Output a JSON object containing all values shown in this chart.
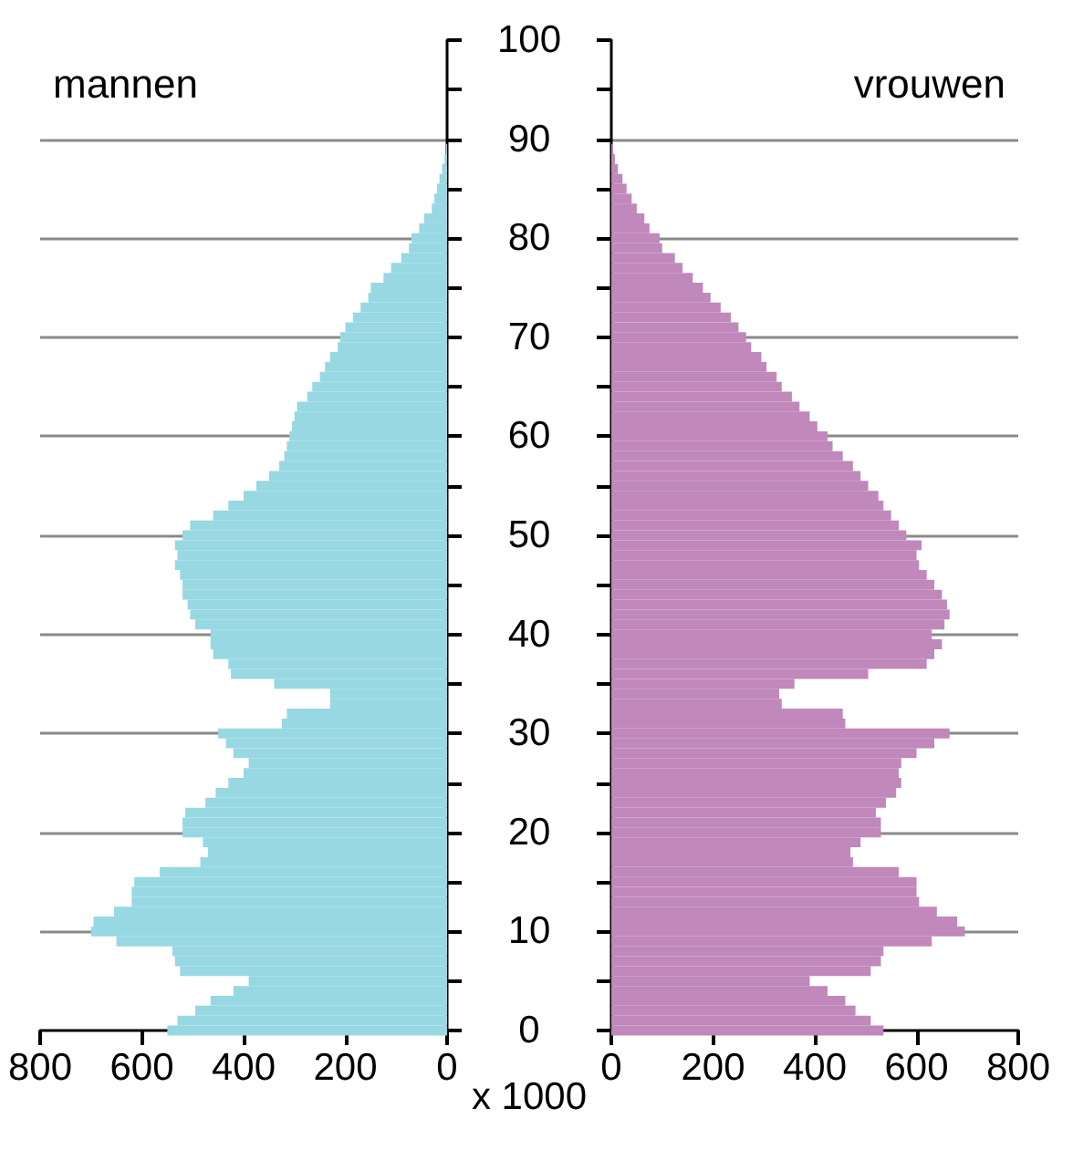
{
  "chart_data": [
    {
      "type": "bar",
      "orientation": "horizontal",
      "title": "mannen",
      "color": "#97d8e3",
      "grid": "y",
      "tick_labels": "x",
      "x": [
        0,
        1,
        2,
        3,
        4,
        5,
        6,
        7,
        8,
        9,
        10,
        11,
        12,
        13,
        14,
        15,
        16,
        17,
        18,
        19,
        20,
        21,
        22,
        23,
        24,
        25,
        26,
        27,
        28,
        29,
        30,
        31,
        32,
        33,
        34,
        35,
        36,
        37,
        38,
        39,
        40,
        41,
        42,
        43,
        44,
        45,
        46,
        47,
        48,
        49,
        50,
        51,
        52,
        53,
        54,
        55,
        56,
        57,
        58,
        59,
        60,
        61,
        62,
        63,
        64,
        65,
        66,
        67,
        68,
        69,
        70,
        71,
        72,
        73,
        74,
        75,
        76,
        77,
        78,
        79,
        80,
        81,
        82,
        83,
        84,
        85,
        86,
        87,
        88,
        89
      ],
      "values": [
        550,
        530,
        495,
        465,
        420,
        390,
        525,
        535,
        540,
        650,
        700,
        695,
        655,
        620,
        620,
        615,
        565,
        485,
        470,
        480,
        520,
        520,
        515,
        475,
        455,
        430,
        400,
        390,
        420,
        435,
        450,
        325,
        315,
        230,
        230,
        340,
        425,
        430,
        460,
        465,
        465,
        495,
        505,
        510,
        520,
        520,
        525,
        535,
        530,
        535,
        520,
        505,
        460,
        430,
        400,
        375,
        350,
        330,
        320,
        315,
        310,
        305,
        300,
        295,
        275,
        265,
        250,
        240,
        230,
        215,
        210,
        200,
        185,
        170,
        155,
        150,
        125,
        110,
        90,
        75,
        70,
        55,
        45,
        30,
        25,
        20,
        15,
        10,
        5,
        2
      ],
      "xlim": [
        800,
        0
      ],
      "xticks": [
        800,
        600,
        400,
        200,
        0
      ],
      "ylim": [
        0,
        100
      ],
      "yticks": [
        0,
        {
          "value": 5,
          "label": null
        },
        10,
        {
          "value": 15,
          "label": null
        },
        20,
        {
          "value": 25,
          "label": null
        },
        30,
        {
          "value": 35,
          "label": null
        },
        40,
        {
          "value": 45,
          "label": null
        },
        50,
        {
          "value": 55,
          "label": null
        },
        60,
        {
          "value": 65,
          "label": null
        },
        70,
        {
          "value": 75,
          "label": null
        },
        80,
        {
          "value": 85,
          "label": null
        },
        90,
        {
          "value": 95,
          "label": null
        },
        100
      ]
    },
    {
      "type": "bar",
      "orientation": "horizontal",
      "title": "vrouwen",
      "color": "#c088bb",
      "grid": "y",
      "annotations": [
        "x 1000"
      ],
      "x": [
        0,
        1,
        2,
        3,
        4,
        5,
        6,
        7,
        8,
        9,
        10,
        11,
        12,
        13,
        14,
        15,
        16,
        17,
        18,
        19,
        20,
        21,
        22,
        23,
        24,
        25,
        26,
        27,
        28,
        29,
        30,
        31,
        32,
        33,
        34,
        35,
        36,
        37,
        38,
        39,
        40,
        41,
        42,
        43,
        44,
        45,
        46,
        47,
        48,
        49,
        50,
        51,
        52,
        53,
        54,
        55,
        56,
        57,
        58,
        59,
        60,
        61,
        62,
        63,
        64,
        65,
        66,
        67,
        68,
        69,
        70,
        71,
        72,
        73,
        74,
        75,
        76,
        77,
        78,
        79,
        80,
        81,
        82,
        83,
        84,
        85,
        86,
        87,
        88,
        89
      ],
      "values": [
        535,
        510,
        480,
        460,
        425,
        390,
        510,
        530,
        535,
        630,
        695,
        680,
        640,
        605,
        600,
        600,
        565,
        475,
        470,
        490,
        530,
        530,
        520,
        540,
        560,
        570,
        565,
        570,
        600,
        635,
        665,
        460,
        455,
        335,
        330,
        360,
        505,
        620,
        635,
        650,
        630,
        655,
        665,
        660,
        650,
        635,
        620,
        605,
        600,
        610,
        580,
        565,
        550,
        535,
        525,
        505,
        490,
        475,
        455,
        435,
        425,
        405,
        390,
        370,
        355,
        335,
        325,
        305,
        295,
        275,
        265,
        250,
        235,
        215,
        195,
        180,
        160,
        140,
        125,
        100,
        95,
        75,
        65,
        50,
        40,
        30,
        22,
        13,
        7,
        3
      ],
      "xlim": [
        0,
        800
      ],
      "xticks": [
        0,
        200,
        400,
        600,
        800
      ],
      "ylim": [
        0,
        100
      ],
      "yticks": [
        0,
        {
          "value": 5,
          "label": null
        },
        10,
        {
          "value": 15,
          "label": null
        },
        20,
        {
          "value": 25,
          "label": null
        },
        30,
        {
          "value": 35,
          "label": null
        },
        40,
        {
          "value": 45,
          "label": null
        },
        50,
        {
          "value": 55,
          "label": null
        },
        60,
        {
          "value": 65,
          "label": null
        },
        70,
        {
          "value": 75,
          "label": null
        },
        80,
        {
          "value": 85,
          "label": null
        },
        90,
        {
          "value": 95,
          "label": null
        },
        100
      ]
    }
  ]
}
